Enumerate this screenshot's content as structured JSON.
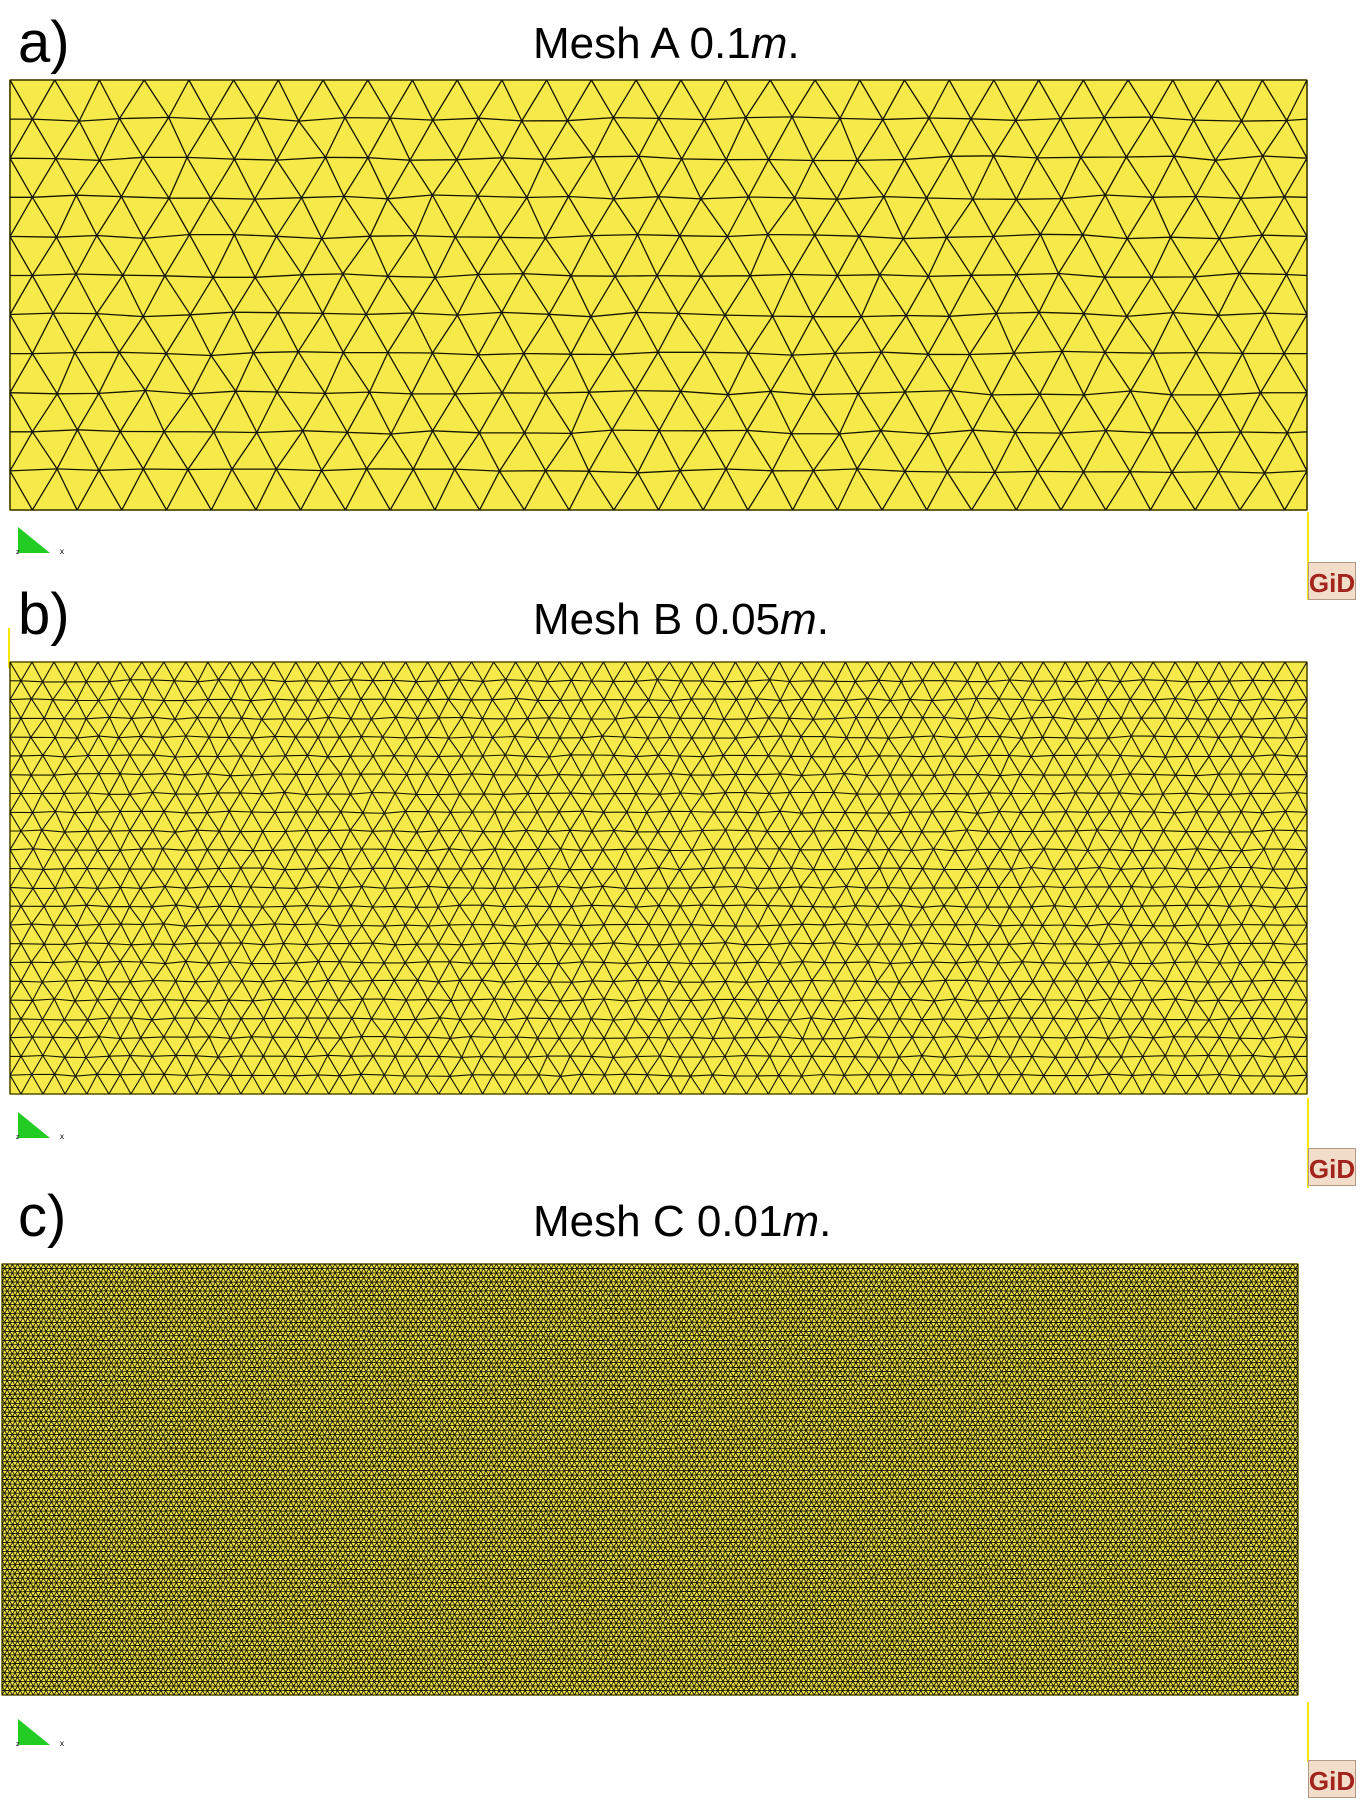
{
  "panels": [
    {
      "id": "a",
      "letter": "a)",
      "title_prefix": "Mesh A 0.1",
      "title_unit": "m",
      "title_suffix": ".",
      "mesh_spacing_m": 0.1
    },
    {
      "id": "b",
      "letter": "b)",
      "title_prefix": "Mesh B 0.05",
      "title_unit": "m",
      "title_suffix": ".",
      "mesh_spacing_m": 0.05
    },
    {
      "id": "c",
      "letter": "c)",
      "title_prefix": "Mesh C 0.01",
      "title_unit": "m",
      "title_suffix": ".",
      "mesh_spacing_m": 0.01
    }
  ],
  "logo_text": "GiD",
  "axis_labels": {
    "x": "x",
    "z": "z"
  },
  "colors": {
    "mesh_fill": "#f6ea4a",
    "mesh_line": "#151500",
    "axis_triad": "#22cc22",
    "logo_text": "#a2241d",
    "logo_bg": "#f1ddc9"
  }
}
